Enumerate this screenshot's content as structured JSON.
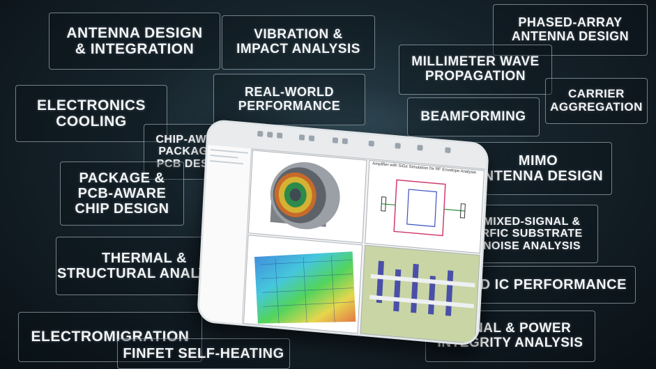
{
  "topics": [
    {
      "id": "antenna-design",
      "text": "ANTENNA DESIGN\n& INTEGRATION"
    },
    {
      "id": "vibration",
      "text": "VIBRATION &\nIMPACT ANALYSIS"
    },
    {
      "id": "phased-array",
      "text": "PHASED-ARRAY\nANTENNA DESIGN"
    },
    {
      "id": "mmwave",
      "text": "MILLIMETER WAVE\nPROPAGATION"
    },
    {
      "id": "carrier-aggregation",
      "text": "CARRIER\nAGGREGATION"
    },
    {
      "id": "electronics-cooling",
      "text": "ELECTRONICS\nCOOLING"
    },
    {
      "id": "real-world",
      "text": "REAL-WORLD\nPERFORMANCE"
    },
    {
      "id": "beamforming",
      "text": "BEAMFORMING"
    },
    {
      "id": "chip-aware",
      "text": "CHIP-AWARE\nPACKAGE &\nPCB DESIGN"
    },
    {
      "id": "package-pcb",
      "text": "PACKAGE &\nPCB-AWARE\nCHIP DESIGN"
    },
    {
      "id": "mimo",
      "text": "MIMO\nANTENNA DESIGN"
    },
    {
      "id": "mixed-signal",
      "text": "MIXED-SIGNAL &\nRFIC SUBSTRATE\nNOISE ANALYSIS"
    },
    {
      "id": "thermal",
      "text": "THERMAL &\nSTRUCTURAL ANALYSIS"
    },
    {
      "id": "3d-ic",
      "text": "3D IC PERFORMANCE"
    },
    {
      "id": "electromigration",
      "text": "ELECTROMIGRATION"
    },
    {
      "id": "signal-power",
      "text": "SIGNAL & POWER\nINTEGRITY ANALYSIS"
    },
    {
      "id": "finfet",
      "text": "FINFET SELF-HEATING"
    }
  ],
  "screen": {
    "pane_circuit_title": "Amplifier with SiGe Simulation for RF Envelope Analysis"
  },
  "colors": {
    "card_text": "#f2f5f7",
    "card_border": "#c8d7e1",
    "background": "#16232b"
  }
}
